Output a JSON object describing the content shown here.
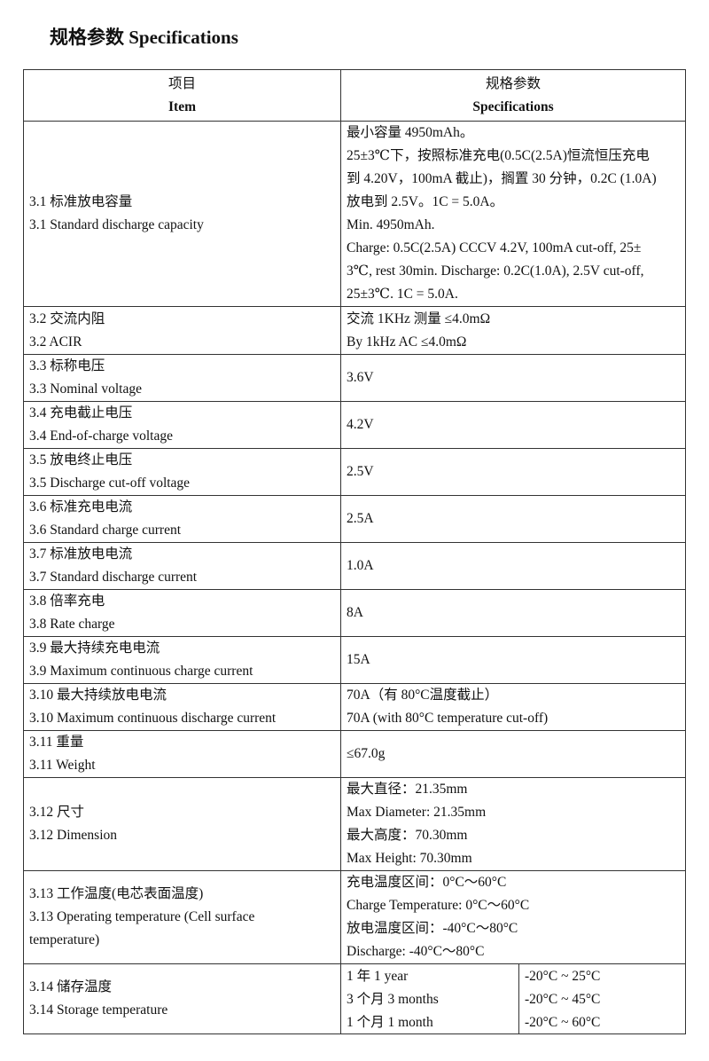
{
  "title": "规格参数 Specifications",
  "header": {
    "item_cn": "项目",
    "item_en": "Item",
    "spec_cn": "规格参数",
    "spec_en": "Specifications"
  },
  "rows": [
    {
      "item": [
        "3.1 标准放电容量",
        "3.1 Standard discharge capacity"
      ],
      "spec": [
        "最小容量 4950mAh。",
        "25±3℃下，按照标准充电(0.5C(2.5A)恒流恒压充电",
        "到 4.20V，100mA 截止)，搁置 30 分钟，0.2C (1.0A)",
        "放电到 2.5V。1C = 5.0A。",
        "Min. 4950mAh.",
        "Charge: 0.5C(2.5A) CCCV 4.2V, 100mA cut-off, 25±",
        "3℃, rest 30min. Discharge: 0.2C(1.0A), 2.5V cut-off,",
        "25±3℃. 1C = 5.0A."
      ]
    },
    {
      "item": [
        "3.2 交流内阻",
        "3.2 ACIR"
      ],
      "spec": [
        "交流 1KHz 测量 ≤4.0mΩ",
        "By 1kHz AC ≤4.0mΩ"
      ]
    },
    {
      "item": [
        "3.3 标称电压",
        "3.3 Nominal voltage"
      ],
      "spec": [
        "3.6V"
      ]
    },
    {
      "item": [
        "3.4 充电截止电压",
        "3.4 End-of-charge voltage"
      ],
      "spec": [
        "4.2V"
      ]
    },
    {
      "item": [
        "3.5 放电终止电压",
        "3.5 Discharge cut-off voltage"
      ],
      "spec": [
        "2.5V"
      ]
    },
    {
      "item": [
        "3.6 标准充电电流",
        "3.6 Standard charge current"
      ],
      "spec": [
        "2.5A"
      ]
    },
    {
      "item": [
        "3.7 标准放电电流",
        "3.7 Standard discharge current"
      ],
      "spec": [
        "1.0A"
      ]
    },
    {
      "item": [
        "3.8 倍率充电",
        "3.8 Rate charge"
      ],
      "spec": [
        "8A"
      ]
    },
    {
      "item": [
        "3.9 最大持续充电电流",
        "3.9 Maximum continuous charge current"
      ],
      "spec": [
        "15A"
      ]
    },
    {
      "item": [
        "3.10 最大持续放电电流",
        "3.10 Maximum continuous discharge current"
      ],
      "spec": [
        "70A（有 80°C温度截止）",
        "70A (with 80°C temperature cut-off)"
      ]
    },
    {
      "item": [
        "3.11 重量",
        "3.11 Weight"
      ],
      "spec": [
        "≤67.0g"
      ]
    },
    {
      "item": [
        "3.12 尺寸",
        "3.12 Dimension"
      ],
      "spec": [
        "最大直径：21.35mm",
        "Max Diameter: 21.35mm",
        "最大高度：70.30mm",
        "Max Height: 70.30mm"
      ]
    },
    {
      "item": [
        "3.13 工作温度(电芯表面温度)",
        "3.13 Operating temperature (Cell surface",
        "temperature)"
      ],
      "spec": [
        "充电温度区间：0°C～60°C",
        "Charge Temperature: 0°C～60°C",
        "放电温度区间：-40°C～80°C",
        "Discharge: -40°C～80°C"
      ]
    },
    {
      "item": [
        "3.14 储存温度",
        "3.14 Storage temperature"
      ],
      "storage": [
        {
          "period": "1 年 1 year",
          "range": "-20°C ~ 25°C"
        },
        {
          "period": "3 个月 3 months",
          "range": "-20°C ~ 45°C"
        },
        {
          "period": "1 个月 1 month",
          "range": "-20°C ~ 60°C"
        }
      ]
    }
  ]
}
